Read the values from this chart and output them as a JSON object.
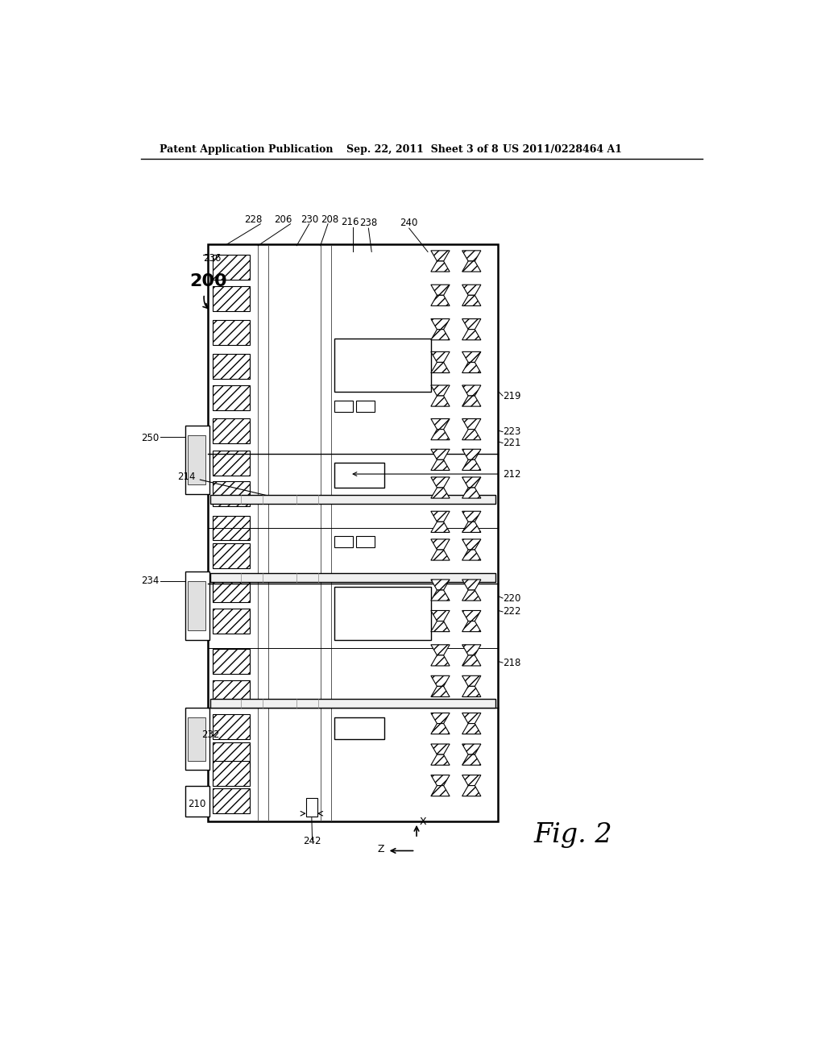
{
  "bg_color": "#ffffff",
  "header_text": "Patent Application Publication",
  "header_date": "Sep. 22, 2011  Sheet 3 of 8",
  "header_patent": "US 2011/0228464 A1",
  "fig_label": "Fig. 2",
  "line_color": "#000000"
}
